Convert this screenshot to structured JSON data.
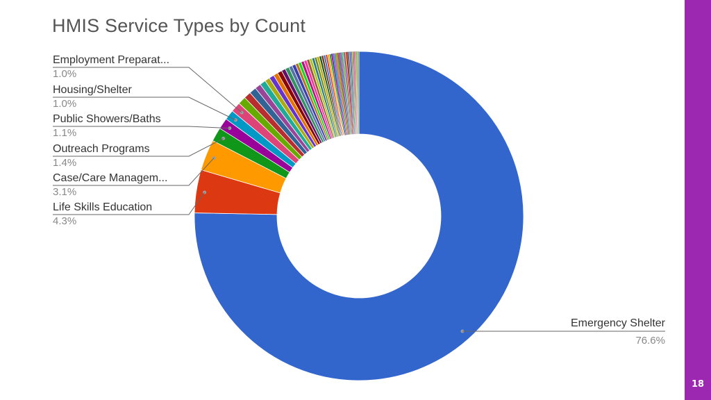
{
  "slide": {
    "page_number": "18",
    "accent_color": "#9c27b0"
  },
  "chart_data": {
    "type": "pie",
    "donut": true,
    "title": "HMIS Service Types by Count",
    "start_angle_deg": 0,
    "direction": "clockwise",
    "slices": [
      {
        "label": "Emergency Shelter",
        "percent": 76.6,
        "display": "76.6%",
        "color": "#3366cc",
        "labeled": true
      },
      {
        "label": "Life Skills Education",
        "percent": 4.3,
        "display": "4.3%",
        "color": "#dc3912",
        "labeled": true
      },
      {
        "label": "Case/Care Managem...",
        "percent": 3.1,
        "display": "3.1%",
        "color": "#ff9900",
        "labeled": true
      },
      {
        "label": "Outreach Programs",
        "percent": 1.4,
        "display": "1.4%",
        "color": "#109618",
        "labeled": true
      },
      {
        "label": "Public Showers/Baths",
        "percent": 1.1,
        "display": "1.1%",
        "color": "#990099",
        "labeled": true
      },
      {
        "label": "Housing/Shelter",
        "percent": 1.0,
        "display": "1.0%",
        "color": "#0099c6",
        "labeled": true
      },
      {
        "label": "Employment Preparat...",
        "percent": 1.0,
        "display": "1.0%",
        "color": "#dd4477",
        "labeled": true
      },
      {
        "percent": 0.8,
        "color": "#66aa00"
      },
      {
        "percent": 0.7,
        "color": "#b82e2e"
      },
      {
        "percent": 0.7,
        "color": "#316395"
      },
      {
        "percent": 0.6,
        "color": "#994499"
      },
      {
        "percent": 0.6,
        "color": "#22aa99"
      },
      {
        "percent": 0.5,
        "color": "#aaaa11"
      },
      {
        "percent": 0.5,
        "color": "#6633cc"
      },
      {
        "percent": 0.45,
        "color": "#e67300"
      },
      {
        "percent": 0.45,
        "color": "#8b0707"
      },
      {
        "percent": 0.4,
        "color": "#651067"
      },
      {
        "percent": 0.4,
        "color": "#329262"
      },
      {
        "percent": 0.35,
        "color": "#5574a6"
      },
      {
        "percent": 0.35,
        "color": "#3b3eac"
      },
      {
        "percent": 0.3,
        "color": "#b77322"
      },
      {
        "percent": 0.3,
        "color": "#16d620"
      },
      {
        "percent": 0.3,
        "color": "#b91383"
      },
      {
        "percent": 0.28,
        "color": "#f4359e"
      },
      {
        "percent": 0.28,
        "color": "#9c5935"
      },
      {
        "percent": 0.26,
        "color": "#a9c413"
      },
      {
        "percent": 0.26,
        "color": "#2a778d"
      },
      {
        "percent": 0.24,
        "color": "#668d1c"
      },
      {
        "percent": 0.24,
        "color": "#bea413"
      },
      {
        "percent": 0.22,
        "color": "#0c5922"
      },
      {
        "percent": 0.22,
        "color": "#743411"
      },
      {
        "percent": 0.2,
        "color": "#3366cc"
      },
      {
        "percent": 0.2,
        "color": "#dc3912"
      },
      {
        "percent": 0.18,
        "color": "#ff9900"
      },
      {
        "percent": 0.18,
        "color": "#109618"
      },
      {
        "percent": 0.16,
        "color": "#990099"
      },
      {
        "percent": 0.16,
        "color": "#0099c6"
      },
      {
        "percent": 0.15,
        "color": "#dd4477"
      },
      {
        "percent": 0.15,
        "color": "#66aa00"
      },
      {
        "percent": 0.14,
        "color": "#b82e2e"
      },
      {
        "percent": 0.14,
        "color": "#316395"
      },
      {
        "percent": 0.13,
        "color": "#994499"
      },
      {
        "percent": 0.13,
        "color": "#22aa99"
      },
      {
        "percent": 0.12,
        "color": "#aaaa11"
      },
      {
        "percent": 0.12,
        "color": "#6633cc"
      },
      {
        "percent": 0.11,
        "color": "#e67300"
      },
      {
        "percent": 0.11,
        "color": "#8b0707"
      },
      {
        "percent": 0.1,
        "color": "#651067"
      },
      {
        "percent": 0.1,
        "color": "#329262"
      },
      {
        "percent": 0.1,
        "color": "#5574a6"
      },
      {
        "percent": 0.1,
        "color": "#3b3eac"
      },
      {
        "percent": 0.09,
        "color": "#b77322"
      },
      {
        "percent": 0.09,
        "color": "#16d620"
      },
      {
        "percent": 0.08,
        "color": "#b91383"
      },
      {
        "percent": 0.08,
        "color": "#f4359e"
      },
      {
        "percent": 0.08,
        "color": "#9c5935"
      },
      {
        "percent": 0.07,
        "color": "#a9c413"
      },
      {
        "percent": 0.07,
        "color": "#2a778d"
      },
      {
        "percent": 0.07,
        "color": "#668d1c"
      },
      {
        "percent": 0.06,
        "color": "#bea413"
      },
      {
        "percent": 0.06,
        "color": "#0c5922"
      }
    ]
  }
}
